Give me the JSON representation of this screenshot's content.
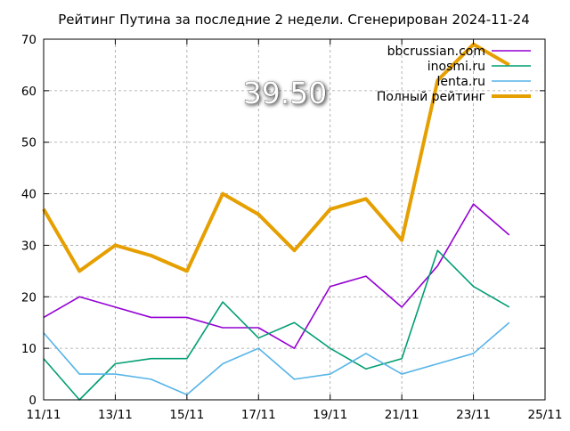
{
  "chart_data": {
    "type": "line",
    "title": "Рейтинг Путина за последние 2 недели. Сгенерирован 2024-11-24",
    "overlay_value": "39.50",
    "xlabel": "",
    "ylabel": "",
    "x": [
      "11/11",
      "12/11",
      "13/11",
      "14/11",
      "15/11",
      "16/11",
      "17/11",
      "18/11",
      "19/11",
      "20/11",
      "21/11",
      "22/11",
      "23/11",
      "24/11"
    ],
    "x_ticks": [
      "11/11",
      "13/11",
      "15/11",
      "17/11",
      "19/11",
      "21/11",
      "23/11",
      "25/11"
    ],
    "y_ticks": [
      "0",
      "10",
      "20",
      "30",
      "40",
      "50",
      "60",
      "70"
    ],
    "ylim": [
      0,
      70
    ],
    "grid": true,
    "legend_position": "top-right",
    "series": [
      {
        "name": "bbcrussian.com",
        "color": "#9400d3",
        "values": [
          16,
          20,
          18,
          16,
          16,
          14,
          14,
          10,
          22,
          24,
          18,
          26,
          38,
          32
        ]
      },
      {
        "name": "inosmi.ru",
        "color": "#009e73",
        "values": [
          8,
          0,
          7,
          8,
          8,
          19,
          12,
          15,
          10,
          6,
          8,
          29,
          22,
          18
        ]
      },
      {
        "name": "lenta.ru",
        "color": "#56b4e9",
        "values": [
          13,
          5,
          5,
          4,
          1,
          7,
          10,
          4,
          5,
          9,
          5,
          7,
          9,
          15
        ]
      },
      {
        "name": "Полный рейтинг",
        "color": "#e69f00",
        "values": [
          37,
          25,
          30,
          28,
          25,
          40,
          36,
          29,
          37,
          39,
          31,
          62,
          69,
          65
        ]
      }
    ]
  }
}
